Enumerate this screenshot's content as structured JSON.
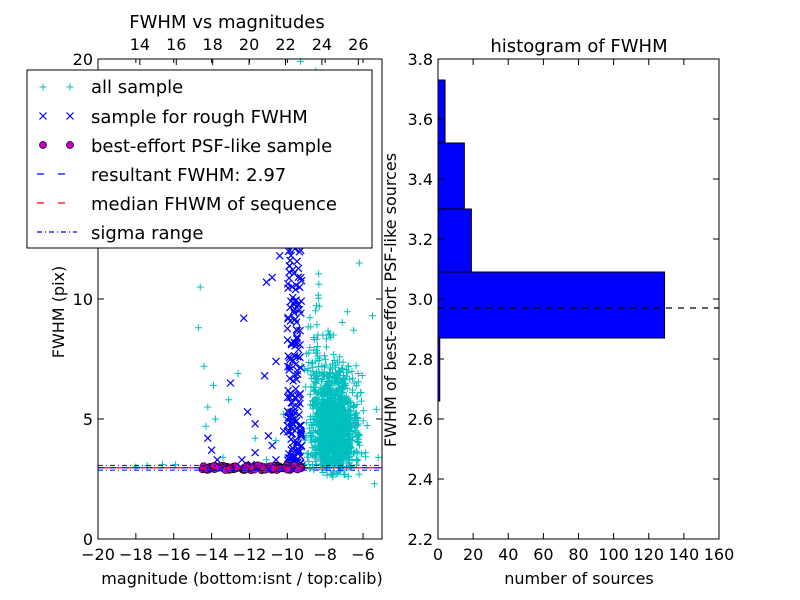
{
  "chart_data": [
    {
      "id": "scatter",
      "type": "scatter",
      "title": "FWHM vs magnitudes",
      "xlabel": "magnitude (bottom:isnt / top:calib)",
      "ylabel": "FWHM (pix)",
      "xlim": [
        -20,
        -5
      ],
      "ylim": [
        0,
        20
      ],
      "xticks": [
        -20,
        -18,
        -16,
        -14,
        -12,
        -10,
        -8,
        -6
      ],
      "xtick_labels": [
        "−20",
        "−18",
        "−16",
        "−14",
        "−12",
        "−10",
        "−8",
        "−6"
      ],
      "yticks": [
        0,
        5,
        10,
        20
      ],
      "ytick_labels": [
        "0",
        "5",
        "10",
        "20"
      ],
      "top_xticks": [
        14,
        16,
        18,
        20,
        22,
        24,
        26
      ],
      "top_xtick_labels": [
        "14",
        "16",
        "18",
        "20",
        "22",
        "24",
        "26"
      ],
      "top_xlim": [
        11.7,
        27.3
      ],
      "legend_position": "upper-left",
      "series": [
        {
          "name": "all sample",
          "marker": "+",
          "color": "#00bfbf",
          "note": "dense cloud of faint sources",
          "cluster": {
            "x_center": -7.6,
            "x_spread": 1.1,
            "y_center": 4.8,
            "y_spread": 1.6,
            "count": 1400
          },
          "points": [
            [
              -14.6,
              10.5
            ],
            [
              -14.7,
              8.8
            ],
            [
              -14.4,
              7.2
            ],
            [
              -14.2,
              5.5
            ],
            [
              -14.3,
              4.7
            ],
            [
              -13.9,
              6.4
            ],
            [
              -13.8,
              5.0
            ],
            [
              -12.6,
              6.9
            ],
            [
              -13.1,
              5.8
            ],
            [
              -13.4,
              3.4
            ],
            [
              -11.7,
              4.2
            ],
            [
              -15.9,
              3.1
            ],
            [
              -16.6,
              3.1
            ],
            [
              -18.0,
              3.0
            ],
            [
              -17.4,
              3.05
            ],
            [
              -10.6,
              4.1
            ],
            [
              -10.2,
              5.2
            ],
            [
              -11.1,
              3.3
            ],
            [
              -9.3,
              19.9
            ],
            [
              -9.1,
              17.6
            ],
            [
              -8.5,
              19.5
            ],
            [
              -7.9,
              17.1
            ],
            [
              -8.2,
              15.2
            ],
            [
              -7.5,
              16.0
            ],
            [
              -9.4,
              12.8
            ],
            [
              -8.7,
              13.2
            ],
            [
              -8.0,
              12.4
            ],
            [
              -7.2,
              14.1
            ],
            [
              -6.7,
              13.6
            ],
            [
              -5.9,
              12.8
            ],
            [
              -6.2,
              11.5
            ],
            [
              -5.5,
              9.3
            ],
            [
              -5.3,
              5.4
            ],
            [
              -5.2,
              3.4
            ],
            [
              -5.4,
              2.3
            ],
            [
              -6.5,
              8.7
            ]
          ]
        },
        {
          "name": "sample for rough FWHM",
          "marker": "x",
          "color": "#0000ff",
          "note": "vertical band near magnitude -10 to -9.3",
          "band": {
            "x_min": -10.0,
            "x_max": -9.25,
            "y_min": 2.9,
            "y_max": 12.6,
            "count": 170
          },
          "points": [
            [
              -14.2,
              4.2
            ],
            [
              -14.0,
              3.7
            ],
            [
              -13.7,
              3.3
            ],
            [
              -13.0,
              6.5
            ],
            [
              -12.1,
              5.3
            ],
            [
              -12.4,
              3.3
            ],
            [
              -12.3,
              9.2
            ],
            [
              -11.7,
              4.8
            ],
            [
              -11.0,
              4.3
            ],
            [
              -11.2,
              6.8
            ],
            [
              -11.7,
              3.6
            ],
            [
              -10.8,
              3.9
            ],
            [
              -10.6,
              3.3
            ],
            [
              -10.8,
              10.9
            ],
            [
              -11.1,
              10.7
            ],
            [
              -10.4,
              11.8
            ],
            [
              -10.6,
              7.4
            ],
            [
              -11.9,
              3.1
            ],
            [
              -10.2,
              4.5
            ]
          ]
        },
        {
          "name": "best-effort PSF-like sample",
          "marker": "o",
          "color": "#bf00bf",
          "note": "tight row at FWHM about 2.97",
          "band": {
            "x_min": -14.5,
            "x_max": -9.25,
            "y_min": 2.87,
            "y_max": 3.07,
            "count": 110
          }
        },
        {
          "name": "resultant FWHM: 2.97",
          "linestyle": "dashed",
          "color": "#0000ff",
          "y": 2.97
        },
        {
          "name": "median FHWM of sequence",
          "linestyle": "dashed",
          "color": "#ff0000",
          "y": 2.97
        },
        {
          "name": "sigma range",
          "linestyle": "dashdot",
          "color": "#0000ff",
          "y_values": [
            2.87,
            3.07
          ]
        }
      ]
    },
    {
      "id": "histogram",
      "type": "bar",
      "orientation": "horizontal",
      "title": "histogram of FWHM",
      "xlabel": "number of sources",
      "ylabel": "FWHM of best-effort PSF-like sources",
      "xlim": [
        0,
        160
      ],
      "ylim": [
        2.2,
        3.8
      ],
      "xticks": [
        0,
        20,
        40,
        60,
        80,
        100,
        120,
        140,
        160
      ],
      "xtick_labels": [
        "0",
        "20",
        "40",
        "60",
        "80",
        "100",
        "120",
        "140",
        "160"
      ],
      "yticks": [
        2.2,
        2.4,
        2.6,
        2.8,
        3.0,
        3.2,
        3.4,
        3.6,
        3.8
      ],
      "ytick_labels": [
        "2.2",
        "2.4",
        "2.6",
        "2.8",
        "3.0",
        "3.2",
        "3.4",
        "3.6",
        "3.8"
      ],
      "bar_color": "#0000ff",
      "bins": [
        {
          "y0": 2.66,
          "y1": 2.87,
          "count": 1
        },
        {
          "y0": 2.87,
          "y1": 3.09,
          "count": 129
        },
        {
          "y0": 3.09,
          "y1": 3.3,
          "count": 19
        },
        {
          "y0": 3.3,
          "y1": 3.52,
          "count": 15
        },
        {
          "y0": 3.52,
          "y1": 3.73,
          "count": 4
        }
      ],
      "reference_line": {
        "y": 2.97,
        "linestyle": "dashed",
        "color": "#000000"
      }
    }
  ]
}
